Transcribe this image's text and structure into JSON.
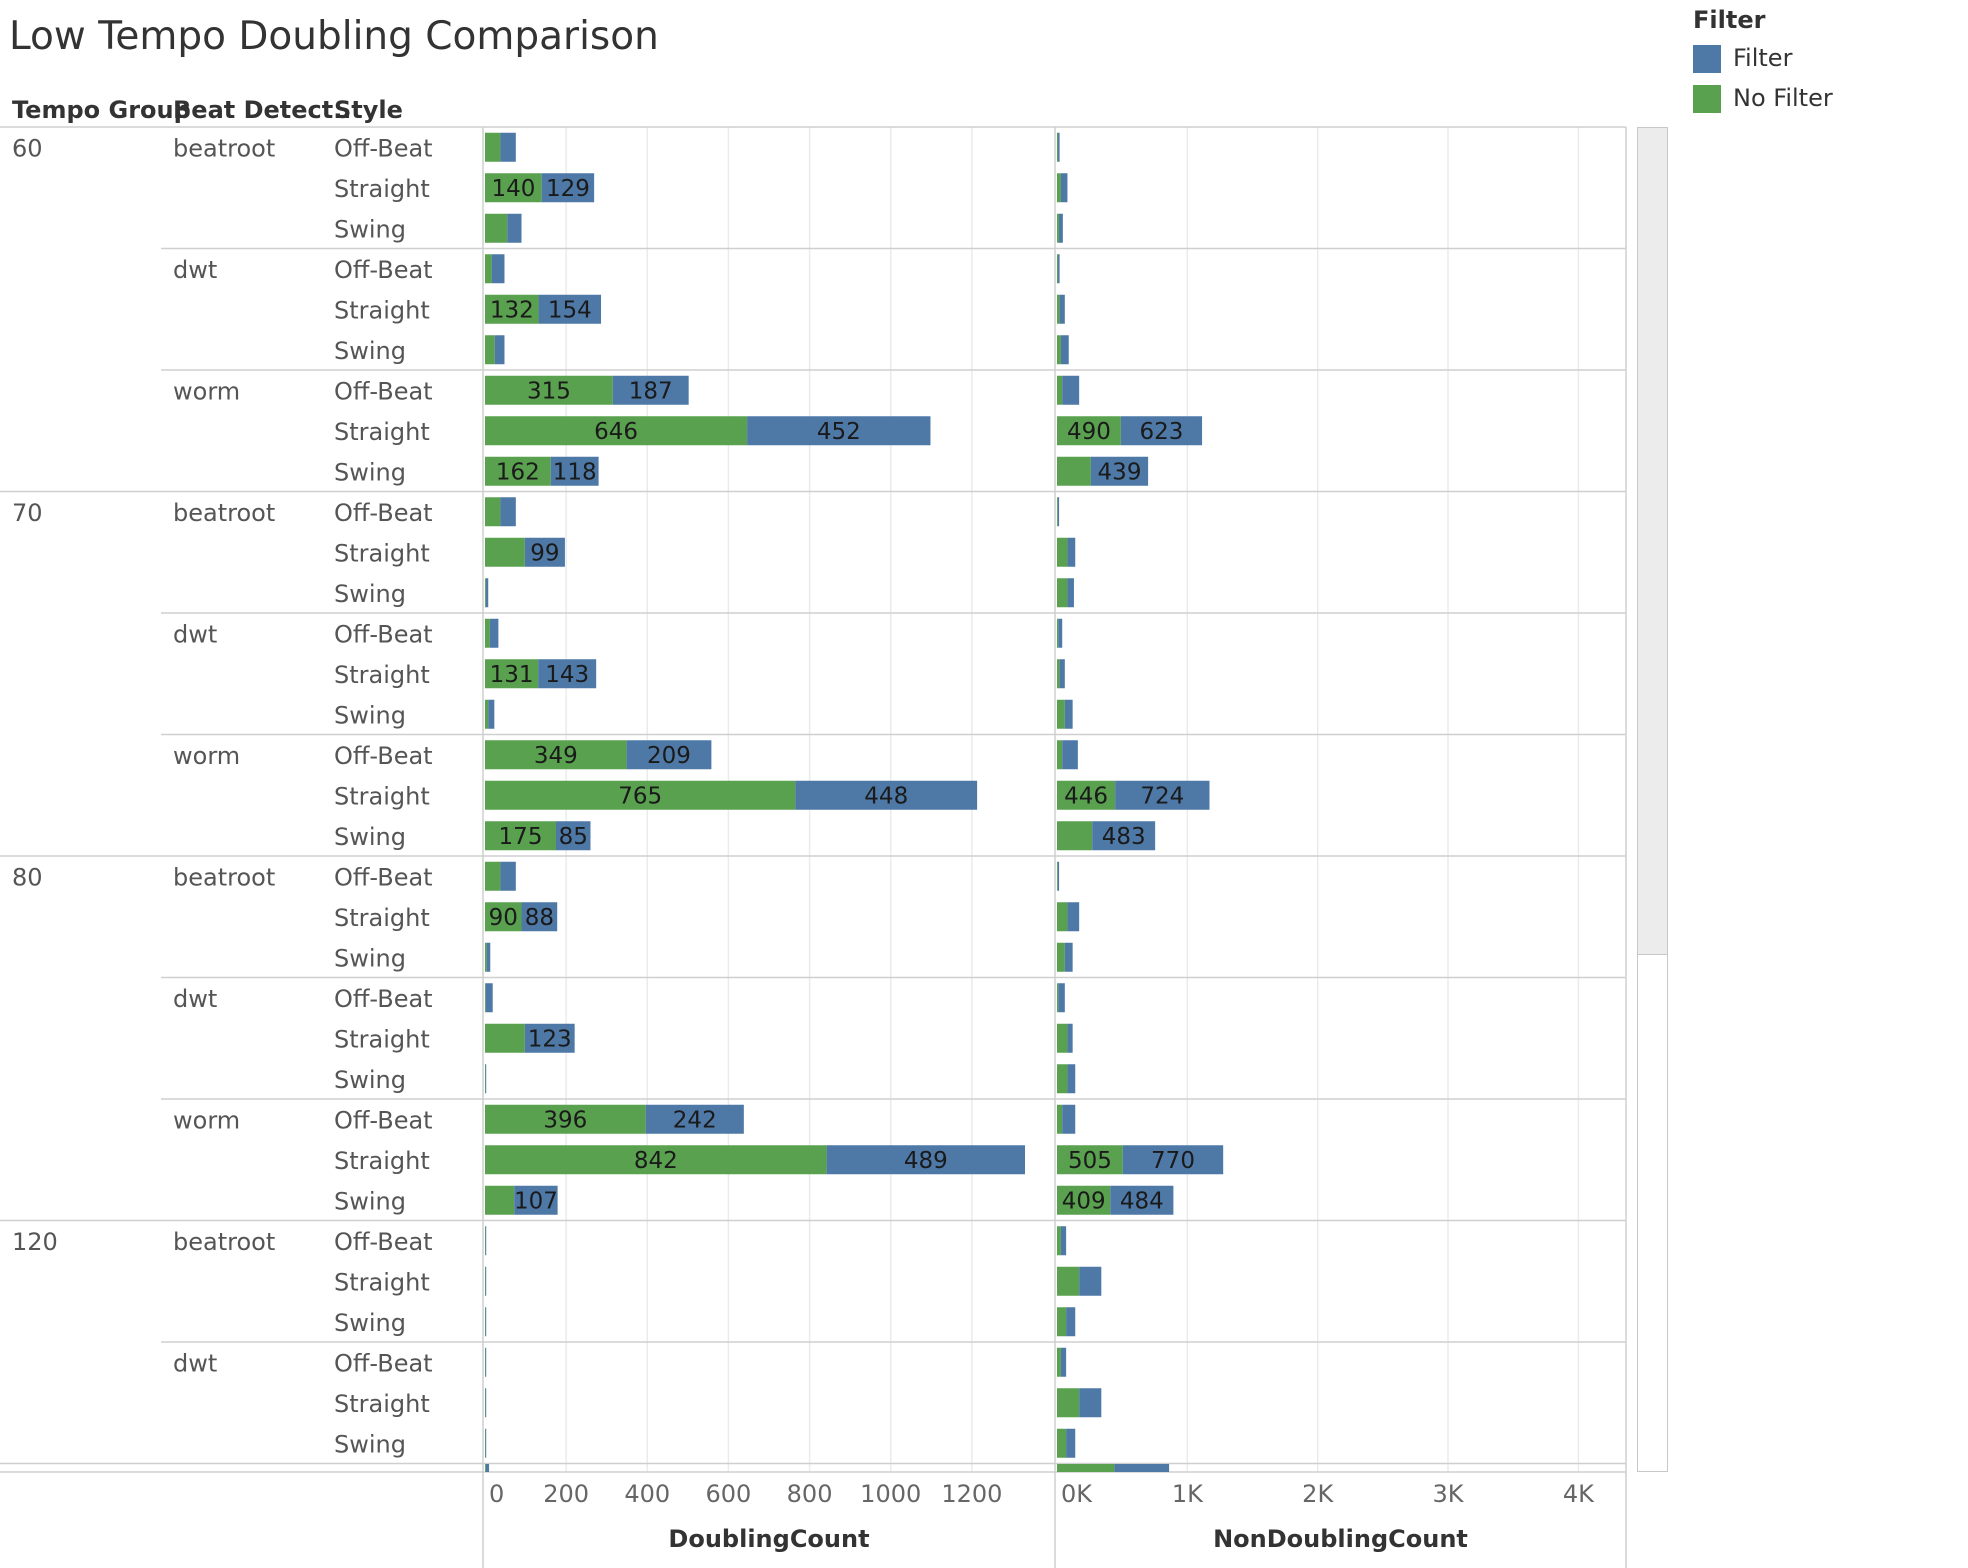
{
  "title": "Low Tempo Doubling Comparison",
  "headers": {
    "tempo_group": "Tempo Group",
    "beat_detect": "Beat Detect..",
    "style": "Style"
  },
  "legend": {
    "title": "Filter",
    "items": [
      {
        "label": "Filter",
        "color": "#4e79a7"
      },
      {
        "label": "No Filter",
        "color": "#59a14f"
      }
    ]
  },
  "colors": {
    "filter": "#4e79a7",
    "no_filter": "#59a14f",
    "grid": "#ebebeb",
    "separator": "#cfcfcf"
  },
  "chart_data": [
    {
      "type": "bar",
      "orientation": "horizontal",
      "stacked": true,
      "xlabel": "DoublingCount",
      "xlim": [
        0,
        1400
      ],
      "ticks": [
        0,
        200,
        400,
        600,
        800,
        1000,
        1200
      ],
      "tick_labels": [
        "0",
        "200",
        "400",
        "600",
        "800",
        "1000",
        "1200"
      ],
      "grid": true,
      "series_order": [
        "No Filter",
        "Filter"
      ],
      "rows": [
        {
          "tempo": "60",
          "detector": "beatroot",
          "style": "Off-Beat",
          "no_filter": 38,
          "filter": 38
        },
        {
          "tempo": "60",
          "detector": "beatroot",
          "style": "Straight",
          "no_filter": 140,
          "filter": 129,
          "no_filter_label": "140",
          "filter_label": "129"
        },
        {
          "tempo": "60",
          "detector": "beatroot",
          "style": "Swing",
          "no_filter": 55,
          "filter": 35
        },
        {
          "tempo": "60",
          "detector": "dwt",
          "style": "Off-Beat",
          "no_filter": 17,
          "filter": 31
        },
        {
          "tempo": "60",
          "detector": "dwt",
          "style": "Straight",
          "no_filter": 132,
          "filter": 154,
          "no_filter_label": "132",
          "filter_label": "154"
        },
        {
          "tempo": "60",
          "detector": "dwt",
          "style": "Swing",
          "no_filter": 24,
          "filter": 24
        },
        {
          "tempo": "60",
          "detector": "worm",
          "style": "Off-Beat",
          "no_filter": 315,
          "filter": 187,
          "no_filter_label": "315",
          "filter_label": "187"
        },
        {
          "tempo": "60",
          "detector": "worm",
          "style": "Straight",
          "no_filter": 646,
          "filter": 452,
          "no_filter_label": "646",
          "filter_label": "452"
        },
        {
          "tempo": "60",
          "detector": "worm",
          "style": "Swing",
          "no_filter": 162,
          "filter": 118,
          "no_filter_label": "162",
          "filter_label": "118"
        },
        {
          "tempo": "70",
          "detector": "beatroot",
          "style": "Off-Beat",
          "no_filter": 38,
          "filter": 38
        },
        {
          "tempo": "70",
          "detector": "beatroot",
          "style": "Straight",
          "no_filter": 98,
          "filter": 99,
          "filter_label": "99"
        },
        {
          "tempo": "70",
          "detector": "beatroot",
          "style": "Swing",
          "no_filter": 2,
          "filter": 6
        },
        {
          "tempo": "70",
          "detector": "dwt",
          "style": "Off-Beat",
          "no_filter": 12,
          "filter": 21
        },
        {
          "tempo": "70",
          "detector": "dwt",
          "style": "Straight",
          "no_filter": 131,
          "filter": 143,
          "no_filter_label": "131",
          "filter_label": "143"
        },
        {
          "tempo": "70",
          "detector": "dwt",
          "style": "Swing",
          "no_filter": 8,
          "filter": 15
        },
        {
          "tempo": "70",
          "detector": "worm",
          "style": "Off-Beat",
          "no_filter": 349,
          "filter": 209,
          "no_filter_label": "349",
          "filter_label": "209"
        },
        {
          "tempo": "70",
          "detector": "worm",
          "style": "Straight",
          "no_filter": 765,
          "filter": 448,
          "no_filter_label": "765",
          "filter_label": "448"
        },
        {
          "tempo": "70",
          "detector": "worm",
          "style": "Swing",
          "no_filter": 175,
          "filter": 85,
          "no_filter_label": "175",
          "filter_label": "85"
        },
        {
          "tempo": "80",
          "detector": "beatroot",
          "style": "Off-Beat",
          "no_filter": 38,
          "filter": 38
        },
        {
          "tempo": "80",
          "detector": "beatroot",
          "style": "Straight",
          "no_filter": 90,
          "filter": 88,
          "no_filter_label": "90",
          "filter_label": "88"
        },
        {
          "tempo": "80",
          "detector": "beatroot",
          "style": "Swing",
          "no_filter": 4,
          "filter": 9
        },
        {
          "tempo": "80",
          "detector": "dwt",
          "style": "Off-Beat",
          "no_filter": 2,
          "filter": 17
        },
        {
          "tempo": "80",
          "detector": "dwt",
          "style": "Straight",
          "no_filter": 98,
          "filter": 123,
          "filter_label": "123"
        },
        {
          "tempo": "80",
          "detector": "dwt",
          "style": "Swing",
          "no_filter": 1,
          "filter": 2
        },
        {
          "tempo": "80",
          "detector": "worm",
          "style": "Off-Beat",
          "no_filter": 396,
          "filter": 242,
          "no_filter_label": "396",
          "filter_label": "242"
        },
        {
          "tempo": "80",
          "detector": "worm",
          "style": "Straight",
          "no_filter": 842,
          "filter": 489,
          "no_filter_label": "842",
          "filter_label": "489"
        },
        {
          "tempo": "80",
          "detector": "worm",
          "style": "Swing",
          "no_filter": 72,
          "filter": 107,
          "filter_label": "107"
        },
        {
          "tempo": "120",
          "detector": "beatroot",
          "style": "Off-Beat",
          "no_filter": 1,
          "filter": 2
        },
        {
          "tempo": "120",
          "detector": "beatroot",
          "style": "Straight",
          "no_filter": 1,
          "filter": 2
        },
        {
          "tempo": "120",
          "detector": "beatroot",
          "style": "Swing",
          "no_filter": 1,
          "filter": 2
        },
        {
          "tempo": "120",
          "detector": "dwt",
          "style": "Off-Beat",
          "no_filter": 1,
          "filter": 2
        },
        {
          "tempo": "120",
          "detector": "dwt",
          "style": "Straight",
          "no_filter": 1,
          "filter": 2
        },
        {
          "tempo": "120",
          "detector": "dwt",
          "style": "Swing",
          "no_filter": 1,
          "filter": 2
        }
      ]
    },
    {
      "type": "bar",
      "orientation": "horizontal",
      "stacked": true,
      "xlabel": "NonDoublingCount",
      "xlim": [
        0,
        4350
      ],
      "ticks": [
        0,
        1000,
        2000,
        3000,
        4000
      ],
      "tick_labels": [
        "0K",
        "1K",
        "2K",
        "3K",
        "4K"
      ],
      "grid": true,
      "series_order": [
        "No Filter",
        "Filter"
      ],
      "rows": [
        {
          "tempo": "60",
          "detector": "beatroot",
          "style": "Off-Beat",
          "no_filter": 8,
          "filter": 12
        },
        {
          "tempo": "60",
          "detector": "beatroot",
          "style": "Straight",
          "no_filter": 30,
          "filter": 50
        },
        {
          "tempo": "60",
          "detector": "beatroot",
          "style": "Swing",
          "no_filter": 15,
          "filter": 30
        },
        {
          "tempo": "60",
          "detector": "dwt",
          "style": "Off-Beat",
          "no_filter": 8,
          "filter": 12
        },
        {
          "tempo": "60",
          "detector": "dwt",
          "style": "Straight",
          "no_filter": 20,
          "filter": 40
        },
        {
          "tempo": "60",
          "detector": "dwt",
          "style": "Swing",
          "no_filter": 30,
          "filter": 60
        },
        {
          "tempo": "60",
          "detector": "worm",
          "style": "Off-Beat",
          "no_filter": 40,
          "filter": 130
        },
        {
          "tempo": "60",
          "detector": "worm",
          "style": "Straight",
          "no_filter": 490,
          "filter": 623,
          "no_filter_label": "490",
          "filter_label": "623"
        },
        {
          "tempo": "60",
          "detector": "worm",
          "style": "Swing",
          "no_filter": 260,
          "filter": 439,
          "filter_label": "439"
        },
        {
          "tempo": "70",
          "detector": "beatroot",
          "style": "Off-Beat",
          "no_filter": 6,
          "filter": 10
        },
        {
          "tempo": "70",
          "detector": "beatroot",
          "style": "Straight",
          "no_filter": 80,
          "filter": 60
        },
        {
          "tempo": "70",
          "detector": "beatroot",
          "style": "Swing",
          "no_filter": 80,
          "filter": 50
        },
        {
          "tempo": "70",
          "detector": "dwt",
          "style": "Off-Beat",
          "no_filter": 10,
          "filter": 30
        },
        {
          "tempo": "70",
          "detector": "dwt",
          "style": "Straight",
          "no_filter": 20,
          "filter": 40
        },
        {
          "tempo": "70",
          "detector": "dwt",
          "style": "Swing",
          "no_filter": 60,
          "filter": 60
        },
        {
          "tempo": "70",
          "detector": "worm",
          "style": "Off-Beat",
          "no_filter": 40,
          "filter": 120
        },
        {
          "tempo": "70",
          "detector": "worm",
          "style": "Straight",
          "no_filter": 446,
          "filter": 724,
          "no_filter_label": "446",
          "filter_label": "724"
        },
        {
          "tempo": "70",
          "detector": "worm",
          "style": "Swing",
          "no_filter": 270,
          "filter": 483,
          "filter_label": "483"
        },
        {
          "tempo": "80",
          "detector": "beatroot",
          "style": "Off-Beat",
          "no_filter": 6,
          "filter": 10
        },
        {
          "tempo": "80",
          "detector": "beatroot",
          "style": "Straight",
          "no_filter": 80,
          "filter": 90
        },
        {
          "tempo": "80",
          "detector": "beatroot",
          "style": "Swing",
          "no_filter": 60,
          "filter": 60
        },
        {
          "tempo": "80",
          "detector": "dwt",
          "style": "Off-Beat",
          "no_filter": 10,
          "filter": 50
        },
        {
          "tempo": "80",
          "detector": "dwt",
          "style": "Straight",
          "no_filter": 80,
          "filter": 40
        },
        {
          "tempo": "80",
          "detector": "dwt",
          "style": "Swing",
          "no_filter": 80,
          "filter": 60
        },
        {
          "tempo": "80",
          "detector": "worm",
          "style": "Off-Beat",
          "no_filter": 40,
          "filter": 100
        },
        {
          "tempo": "80",
          "detector": "worm",
          "style": "Straight",
          "no_filter": 505,
          "filter": 770,
          "no_filter_label": "505",
          "filter_label": "770"
        },
        {
          "tempo": "80",
          "detector": "worm",
          "style": "Swing",
          "no_filter": 409,
          "filter": 484,
          "no_filter_label": "409",
          "filter_label": "484"
        },
        {
          "tempo": "120",
          "detector": "beatroot",
          "style": "Off-Beat",
          "no_filter": 30,
          "filter": 40
        },
        {
          "tempo": "120",
          "detector": "beatroot",
          "style": "Straight",
          "no_filter": 170,
          "filter": 170
        },
        {
          "tempo": "120",
          "detector": "beatroot",
          "style": "Swing",
          "no_filter": 70,
          "filter": 70
        },
        {
          "tempo": "120",
          "detector": "dwt",
          "style": "Off-Beat",
          "no_filter": 30,
          "filter": 40
        },
        {
          "tempo": "120",
          "detector": "dwt",
          "style": "Straight",
          "no_filter": 170,
          "filter": 170
        },
        {
          "tempo": "120",
          "detector": "dwt",
          "style": "Swing",
          "no_filter": 70,
          "filter": 70
        }
      ]
    }
  ]
}
